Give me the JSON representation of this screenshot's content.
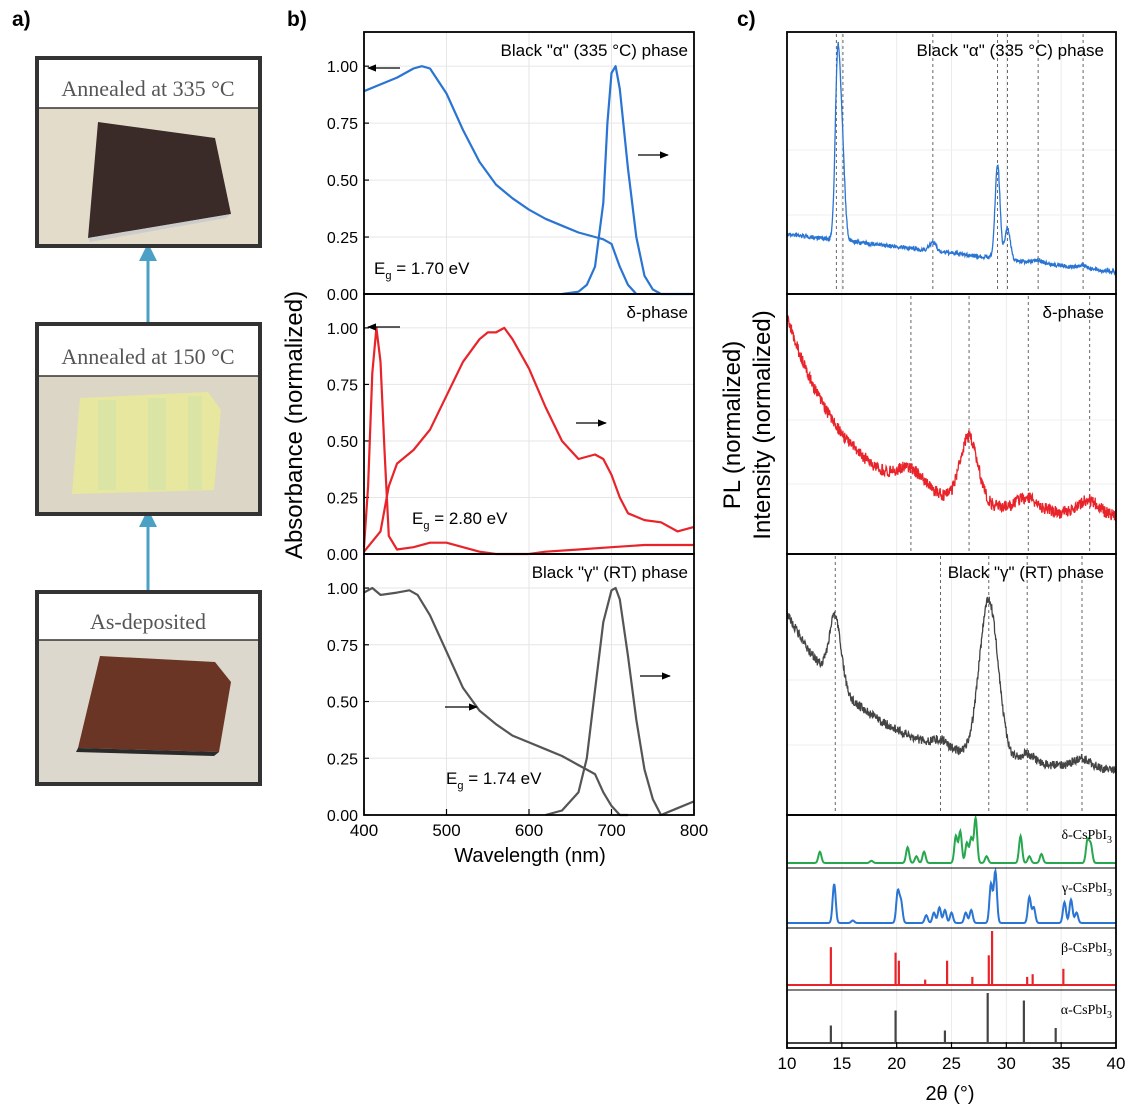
{
  "panel_labels": {
    "a": "a)",
    "b": "b)",
    "c": "c)"
  },
  "panel_a": {
    "samples": [
      {
        "label": "Annealed at 335 °C",
        "film_color": "#3a2a28"
      },
      {
        "label": "Annealed at 150 °C",
        "film_color": "#e8e7a0"
      },
      {
        "label": "As-deposited",
        "film_color": "#6a3524"
      }
    ],
    "arrow_color": "#4ba0c6"
  },
  "chart_data": [
    {
      "type": "line",
      "panel": "b",
      "xlabel": "Wavelength (nm)",
      "ylabel_left": "Absorbance (normalized)",
      "xlim": [
        400,
        800
      ],
      "xticks": [
        "400",
        "500",
        "600",
        "700",
        "800"
      ],
      "ylim": [
        0,
        1.15
      ],
      "yticks": [
        "0.00",
        "0.25",
        "0.50",
        "0.75",
        "1.00"
      ],
      "subplots": [
        {
          "title": "Black \"α\" (335 °C) phase",
          "color": "#2a74d3",
          "eg_label": "1.70 eV",
          "absorbance": {
            "x": [
              400,
              420,
              440,
              460,
              470,
              480,
              500,
              520,
              540,
              560,
              580,
              600,
              620,
              640,
              660,
              680,
              690,
              700,
              710,
              720,
              730
            ],
            "y": [
              0.89,
              0.92,
              0.95,
              0.99,
              1.0,
              0.99,
              0.88,
              0.72,
              0.58,
              0.48,
              0.42,
              0.37,
              0.33,
              0.3,
              0.27,
              0.25,
              0.24,
              0.22,
              0.12,
              0.04,
              0.0
            ]
          },
          "pl": {
            "x": [
              640,
              660,
              670,
              680,
              690,
              695,
              700,
              705,
              710,
              720,
              730,
              740,
              750,
              760,
              780,
              800
            ],
            "y": [
              0.0,
              0.01,
              0.04,
              0.12,
              0.4,
              0.75,
              0.97,
              1.0,
              0.9,
              0.55,
              0.25,
              0.08,
              0.02,
              0.0,
              0.0,
              0.0
            ]
          }
        },
        {
          "title": "δ-phase",
          "color": "#e8242a",
          "eg_label": "2.80 eV",
          "absorbance": {
            "x": [
              400,
              405,
              410,
              415,
              420,
              425,
              430,
              440,
              460,
              480,
              500,
              520,
              540,
              560,
              580,
              600,
              620,
              660,
              700,
              740,
              800
            ],
            "y": [
              0.03,
              0.3,
              0.8,
              1.0,
              0.85,
              0.45,
              0.08,
              0.02,
              0.03,
              0.05,
              0.05,
              0.03,
              0.01,
              0.0,
              0.0,
              0.0,
              0.01,
              0.02,
              0.03,
              0.04,
              0.04
            ]
          },
          "pl": {
            "x": [
              400,
              420,
              430,
              440,
              460,
              480,
              500,
              520,
              540,
              550,
              560,
              570,
              580,
              600,
              620,
              640,
              660,
              680,
              690,
              700,
              710,
              720,
              740,
              760,
              780,
              800
            ],
            "y": [
              0.01,
              0.1,
              0.3,
              0.4,
              0.46,
              0.55,
              0.7,
              0.85,
              0.95,
              0.98,
              0.98,
              1.0,
              0.95,
              0.82,
              0.65,
              0.5,
              0.42,
              0.44,
              0.42,
              0.35,
              0.25,
              0.18,
              0.15,
              0.14,
              0.1,
              0.12
            ]
          }
        },
        {
          "title": "Black \"γ\" (RT) phase",
          "color": "#555555",
          "eg_label": "1.74 eV",
          "absorbance": {
            "x": [
              400,
              410,
              420,
              440,
              455,
              465,
              480,
              500,
              520,
              540,
              560,
              580,
              600,
              620,
              640,
              660,
              670,
              680,
              690,
              700,
              710,
              720
            ],
            "y": [
              0.98,
              1.0,
              0.97,
              0.98,
              0.99,
              0.97,
              0.88,
              0.72,
              0.56,
              0.46,
              0.4,
              0.35,
              0.32,
              0.29,
              0.26,
              0.22,
              0.2,
              0.18,
              0.1,
              0.04,
              0.0,
              0.0
            ]
          },
          "pl": {
            "x": [
              620,
              640,
              660,
              670,
              680,
              690,
              700,
              705,
              710,
              720,
              730,
              740,
              750,
              760,
              780,
              800
            ],
            "y": [
              0.0,
              0.02,
              0.1,
              0.25,
              0.55,
              0.85,
              0.99,
              1.0,
              0.95,
              0.7,
              0.42,
              0.2,
              0.07,
              0.0,
              0.03,
              0.06
            ]
          }
        }
      ]
    },
    {
      "type": "line",
      "panel": "c",
      "xlabel": "2θ (°)",
      "ylabel_left": "Intensity (normalized)",
      "ylabel_right": "PL (normalized)",
      "xlim": [
        10,
        40
      ],
      "xticks": [
        "10",
        "15",
        "20",
        "25",
        "30",
        "35",
        "40"
      ],
      "subplots": [
        {
          "title": "Black \"α\" (335 °C) phase",
          "color": "#2a74d3",
          "dashed_at": [
            14.5,
            15.1,
            23.3,
            29.2,
            30.1,
            32.9,
            37.0
          ]
        },
        {
          "title": "δ-phase",
          "color": "#e8242a",
          "dashed_at": [
            21.3,
            26.6,
            32.0,
            37.6
          ]
        },
        {
          "title": "Black \"γ\" (RT) phase",
          "color": "#444444",
          "dashed_at": [
            14.4,
            24.0,
            28.4,
            31.9,
            36.9
          ]
        }
      ],
      "references": [
        {
          "name": "δ-CsPbI",
          "sub": "3",
          "color": "#27a84f",
          "peaks": [
            [
              13.0,
              0.25
            ],
            [
              17.7,
              0.05
            ],
            [
              21.0,
              0.35
            ],
            [
              21.8,
              0.15
            ],
            [
              22.5,
              0.25
            ],
            [
              25.4,
              0.6
            ],
            [
              25.8,
              0.7
            ],
            [
              26.4,
              0.45
            ],
            [
              26.8,
              0.55
            ],
            [
              27.2,
              1.0
            ],
            [
              28.2,
              0.15
            ],
            [
              31.3,
              0.6
            ],
            [
              32.1,
              0.15
            ],
            [
              33.2,
              0.2
            ],
            [
              37.4,
              0.5
            ],
            [
              37.7,
              0.4
            ]
          ]
        },
        {
          "name": "γ-CsPbI",
          "sub": "3",
          "color": "#2a74d3",
          "peaks": [
            [
              14.3,
              0.75
            ],
            [
              16.0,
              0.05
            ],
            [
              20.1,
              0.6
            ],
            [
              20.4,
              0.4
            ],
            [
              22.7,
              0.15
            ],
            [
              23.4,
              0.2
            ],
            [
              23.9,
              0.3
            ],
            [
              24.4,
              0.25
            ],
            [
              25.0,
              0.2
            ],
            [
              26.3,
              0.2
            ],
            [
              26.8,
              0.25
            ],
            [
              28.6,
              0.75
            ],
            [
              29.0,
              1.0
            ],
            [
              32.1,
              0.5
            ],
            [
              32.5,
              0.3
            ],
            [
              35.3,
              0.4
            ],
            [
              35.9,
              0.45
            ],
            [
              36.4,
              0.2
            ]
          ]
        },
        {
          "name": "β-CsPbI",
          "sub": "3",
          "color": "#e8242a",
          "peaks": [
            [
              14.0,
              0.7
            ],
            [
              19.9,
              0.6
            ],
            [
              20.2,
              0.45
            ],
            [
              22.6,
              0.1
            ],
            [
              24.6,
              0.45
            ],
            [
              26.9,
              0.15
            ],
            [
              28.4,
              0.55
            ],
            [
              28.7,
              1.0
            ],
            [
              31.9,
              0.15
            ],
            [
              32.4,
              0.2
            ],
            [
              35.2,
              0.3
            ]
          ]
        },
        {
          "name": "α-CsPbI",
          "sub": "3",
          "color": "#444444",
          "peaks": [
            [
              14.0,
              0.35
            ],
            [
              19.9,
              0.65
            ],
            [
              24.4,
              0.25
            ],
            [
              28.3,
              1.0
            ],
            [
              31.6,
              0.85
            ],
            [
              34.5,
              0.3
            ]
          ]
        }
      ]
    }
  ]
}
